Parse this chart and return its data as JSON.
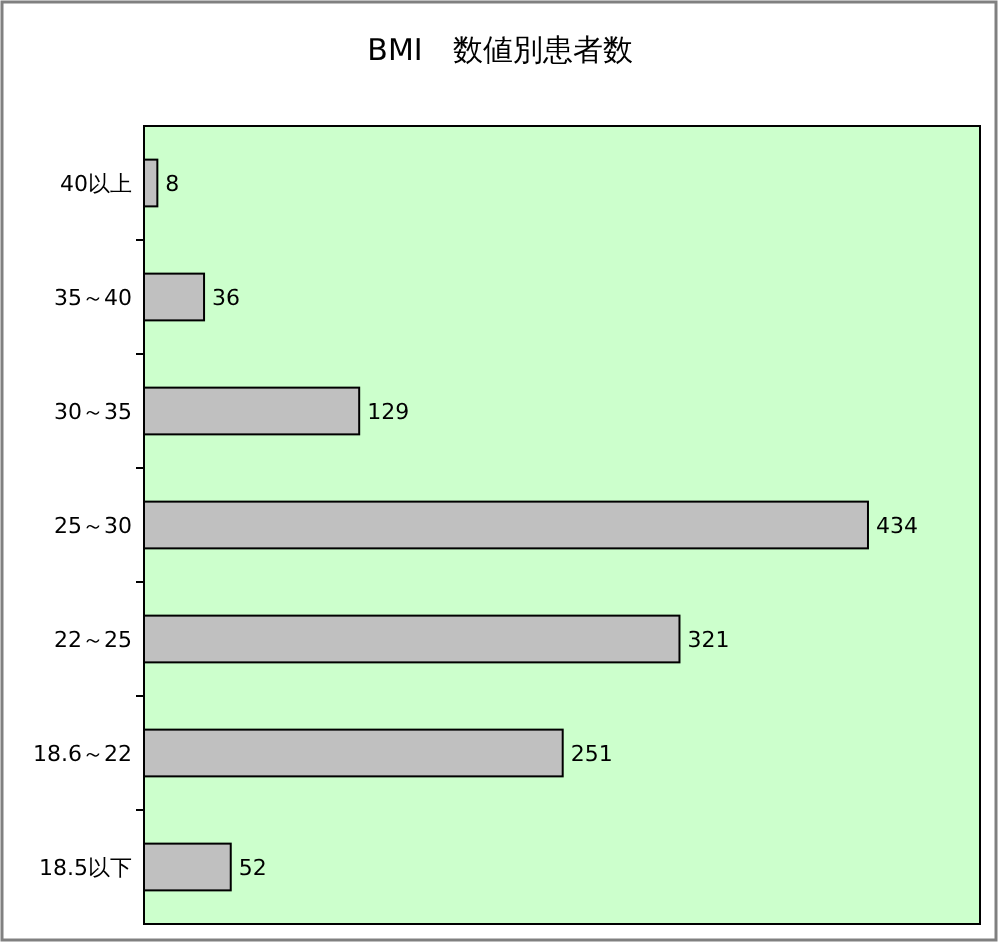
{
  "chart_data": {
    "type": "bar",
    "orientation": "horizontal",
    "title": "BMI　数値別患者数",
    "categories": [
      "40以上",
      "35～40",
      "30～35",
      "25～30",
      "22～25",
      "18.6～22",
      "18.5以下"
    ],
    "values": [
      8,
      36,
      129,
      434,
      321,
      251,
      52
    ],
    "color": "#c0c0c0",
    "data_labels": true
  }
}
